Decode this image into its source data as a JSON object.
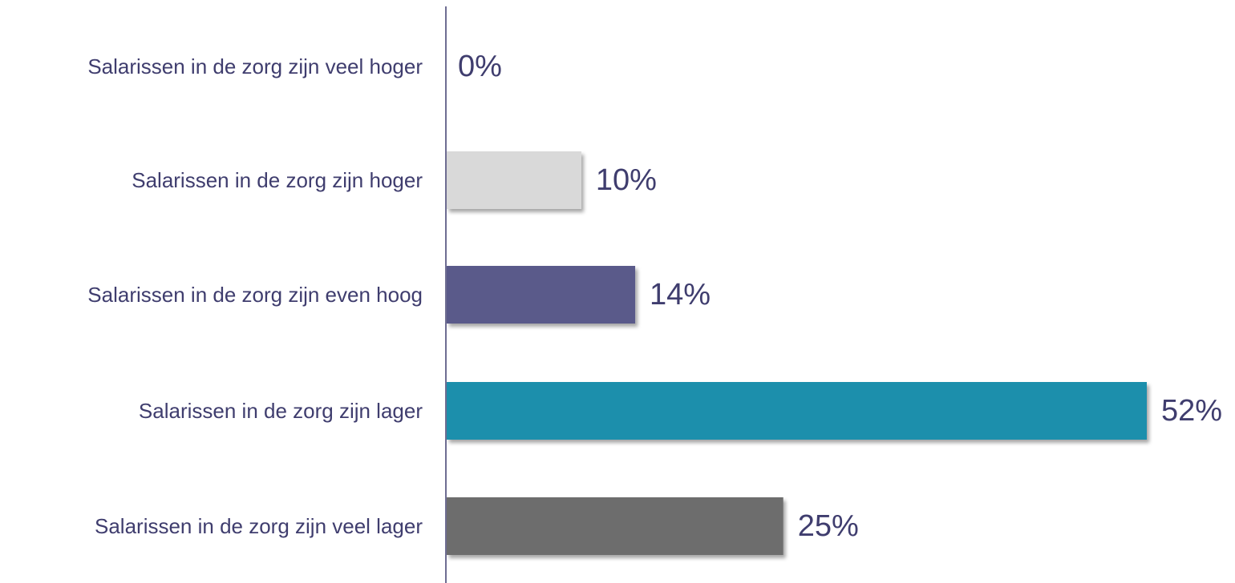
{
  "chart_data": {
    "type": "bar",
    "orientation": "horizontal",
    "categories": [
      "Salarissen in de zorg zijn veel hoger",
      "Salarissen in de zorg zijn hoger",
      "Salarissen in de zorg zijn even hoog",
      "Salarissen in de zorg zijn lager",
      "Salarissen in de zorg zijn veel lager"
    ],
    "values": [
      0,
      10,
      14,
      52,
      25
    ],
    "value_labels": [
      "0%",
      "10%",
      "14%",
      "52%",
      "25%"
    ],
    "bar_colors": [
      "#d9d9d9",
      "#d9d9d9",
      "#5a5a8a",
      "#1f8fac",
      "#6d6d6d"
    ],
    "title": "",
    "xlabel": "",
    "ylabel": "",
    "xlim": [
      0,
      52
    ],
    "grid": false,
    "legend": "none"
  },
  "colors": {
    "text": "#3f3d6e",
    "axis": "#3f3d6e"
  }
}
